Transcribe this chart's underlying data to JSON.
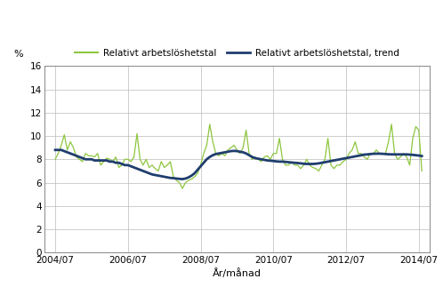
{
  "title": "",
  "ylabel": "%",
  "xlabel": "År/månad",
  "legend_line1": "Relativt arbetslöshetstal",
  "legend_line2": "Relativt arbetslöshetstal, trend",
  "line1_color": "#8dc63f",
  "line2_color": "#1f3d6e",
  "ylim": [
    0,
    16
  ],
  "yticks": [
    0,
    2,
    4,
    6,
    8,
    10,
    12,
    14,
    16
  ],
  "xtick_labels": [
    "2004/07",
    "2006/07",
    "2008/07",
    "2010/07",
    "2012/07",
    "2014/07"
  ],
  "background_color": "#ffffff",
  "grid_color": "#bbbbbb",
  "raw": [
    8.0,
    8.5,
    9.2,
    10.1,
    8.8,
    9.5,
    9.0,
    8.2,
    8.0,
    7.8,
    8.5,
    8.3,
    8.3,
    8.2,
    8.5,
    7.5,
    7.8,
    8.1,
    8.0,
    7.8,
    8.2,
    7.3,
    7.5,
    8.0,
    8.0,
    7.8,
    8.2,
    10.2,
    8.0,
    7.5,
    8.0,
    7.3,
    7.5,
    7.2,
    7.0,
    7.8,
    7.3,
    7.5,
    7.8,
    6.5,
    6.2,
    6.0,
    5.5,
    6.0,
    6.2,
    6.3,
    6.5,
    6.8,
    7.5,
    8.5,
    9.2,
    11.0,
    9.5,
    8.5,
    8.3,
    8.5,
    8.3,
    8.8,
    9.0,
    9.2,
    8.8,
    8.5,
    9.0,
    10.5,
    8.5,
    8.0,
    8.2,
    8.0,
    7.8,
    8.2,
    8.3,
    8.0,
    8.5,
    8.5,
    9.8,
    8.0,
    7.5,
    7.5,
    7.8,
    7.5,
    7.5,
    7.2,
    7.5,
    8.0,
    7.5,
    7.3,
    7.2,
    7.0,
    7.5,
    8.0,
    9.8,
    7.5,
    7.2,
    7.5,
    7.5,
    7.8,
    8.0,
    8.5,
    8.8,
    9.5,
    8.5,
    8.5,
    8.2,
    8.0,
    8.5,
    8.5,
    8.8,
    8.5,
    8.5,
    8.5,
    9.5,
    11.0,
    8.5,
    8.0,
    8.2,
    8.5,
    8.2,
    7.5,
    9.8,
    10.8,
    10.5,
    7.0
  ],
  "trend": [
    8.8,
    8.8,
    8.8,
    8.7,
    8.6,
    8.5,
    8.4,
    8.3,
    8.2,
    8.1,
    8.0,
    8.0,
    8.0,
    7.9,
    7.9,
    7.9,
    7.9,
    7.9,
    7.8,
    7.8,
    7.7,
    7.7,
    7.6,
    7.5,
    7.5,
    7.4,
    7.3,
    7.2,
    7.1,
    7.0,
    6.9,
    6.8,
    6.7,
    6.65,
    6.6,
    6.55,
    6.5,
    6.45,
    6.4,
    6.38,
    6.35,
    6.32,
    6.3,
    6.35,
    6.45,
    6.6,
    6.8,
    7.1,
    7.4,
    7.7,
    8.0,
    8.2,
    8.35,
    8.45,
    8.5,
    8.55,
    8.6,
    8.65,
    8.7,
    8.72,
    8.7,
    8.65,
    8.6,
    8.5,
    8.35,
    8.2,
    8.1,
    8.05,
    8.0,
    7.95,
    7.9,
    7.88,
    7.85,
    7.82,
    7.8,
    7.8,
    7.78,
    7.75,
    7.72,
    7.7,
    7.68,
    7.65,
    7.62,
    7.6,
    7.6,
    7.6,
    7.62,
    7.65,
    7.7,
    7.75,
    7.8,
    7.85,
    7.9,
    7.95,
    8.0,
    8.05,
    8.1,
    8.15,
    8.2,
    8.25,
    8.3,
    8.35,
    8.4,
    8.42,
    8.45,
    8.47,
    8.48,
    8.48,
    8.47,
    8.45,
    8.43,
    8.42,
    8.42,
    8.42,
    8.42,
    8.42,
    8.42,
    8.4,
    8.38,
    8.35,
    8.32,
    8.28
  ]
}
